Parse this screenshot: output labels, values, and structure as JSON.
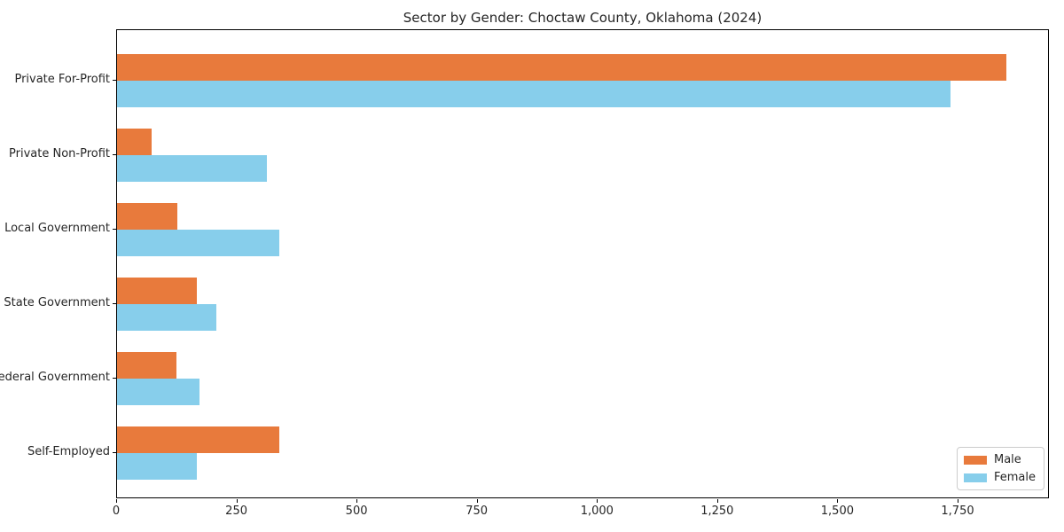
{
  "chart_data": {
    "type": "bar",
    "orientation": "horizontal",
    "title": "Sector by Gender: Choctaw County, Oklahoma (2024)",
    "categories": [
      "Private For-Profit",
      "Private Non-Profit",
      "Local Government",
      "State Government",
      "Federal Government",
      "Self-Employed"
    ],
    "series": [
      {
        "name": "Male",
        "color": "#e87a3c",
        "values": [
          1850,
          72,
          125,
          166,
          123,
          337
        ]
      },
      {
        "name": "Female",
        "color": "#87ceeb",
        "values": [
          1734,
          312,
          338,
          207,
          172,
          166
        ]
      }
    ],
    "xlabel": "",
    "ylabel": "",
    "xlim": [
      0,
      1940
    ],
    "xticks": [
      0,
      250,
      500,
      750,
      1000,
      1250,
      1500,
      1750
    ],
    "xtick_labels": [
      "0",
      "250",
      "500",
      "750",
      "1,000",
      "1,250",
      "1,500",
      "1,750"
    ],
    "grid": false,
    "legend_position": "lower right",
    "background_color": "#ffffff",
    "spine_color": "#000000"
  }
}
